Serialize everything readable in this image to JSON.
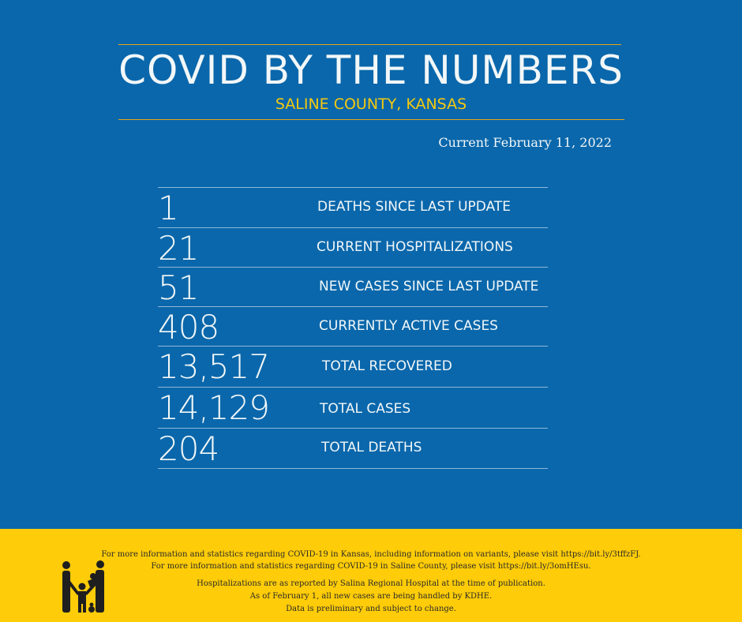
{
  "header": {
    "title": "COVID BY THE NUMBERS",
    "subtitle": "SALINE COUNTY, KANSAS",
    "date": "Current February 11, 2022"
  },
  "stats": [
    {
      "value": "1",
      "label": "DEATHS SINCE LAST UPDATE"
    },
    {
      "value": "21",
      "label": "CURRENT HOSPITALIZATIONS"
    },
    {
      "value": "51",
      "label": "NEW CASES SINCE LAST UPDATE"
    },
    {
      "value": "408",
      "label": "CURRENTLY ACTIVE CASES"
    },
    {
      "value": "13,517",
      "label": "TOTAL RECOVERED"
    },
    {
      "value": "14,129",
      "label": "TOTAL CASES"
    },
    {
      "value": "204",
      "label": "TOTAL DEATHS"
    }
  ],
  "footer": {
    "line1": "For more information and statistics regarding COVID-19 in Kansas, including information on variants, please visit https://bit.ly/3tffzFJ.",
    "line2": "For more information and statistics regarding COVID-19 in Saline County, please visit  https://bit.ly/3omHEsu.",
    "line3": "Hospitalizations are as reported by Salina Regional Hospital at the time of publication.",
    "line4": "As of February 1, all new cases are being handled by KDHE.",
    "line5": "Data is preliminary and subject to change.",
    "logo_icon": "family-icon"
  },
  "colors": {
    "background": "#0a67ab",
    "accent": "#fecc08",
    "rule": "#e8a31a"
  }
}
